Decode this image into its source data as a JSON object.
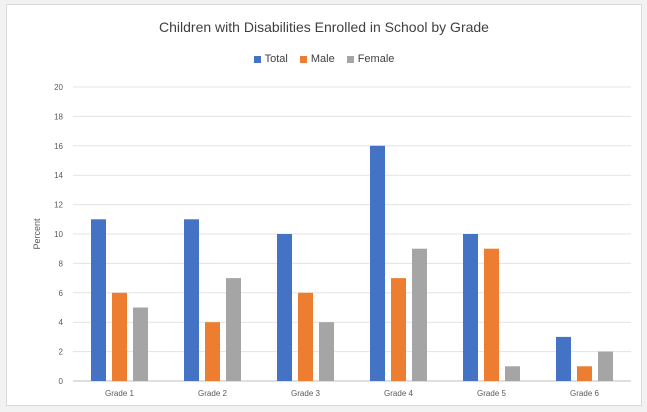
{
  "chart_data": {
    "type": "bar",
    "title": "Children with Disabilities Enrolled in School by Grade",
    "ylabel": "Percent",
    "xlabel": "",
    "categories": [
      "Grade 1",
      "Grade 2",
      "Grade 3",
      "Grade 4",
      "Grade 5",
      "Grade 6"
    ],
    "series": [
      {
        "name": "Total",
        "color": "#4472c4",
        "values": [
          11,
          11,
          10,
          16,
          10,
          3
        ]
      },
      {
        "name": "Male",
        "color": "#ed7d31",
        "values": [
          6,
          4,
          6,
          7,
          9,
          1
        ]
      },
      {
        "name": "Female",
        "color": "#a5a5a5",
        "values": [
          5,
          7,
          4,
          9,
          1,
          2
        ]
      }
    ],
    "ylim": [
      0,
      20
    ],
    "yticks": [
      "0",
      "2",
      "4",
      "6",
      "8",
      "10",
      "12",
      "14",
      "16",
      "18",
      "20"
    ],
    "grid": true,
    "legend_position": "top"
  }
}
